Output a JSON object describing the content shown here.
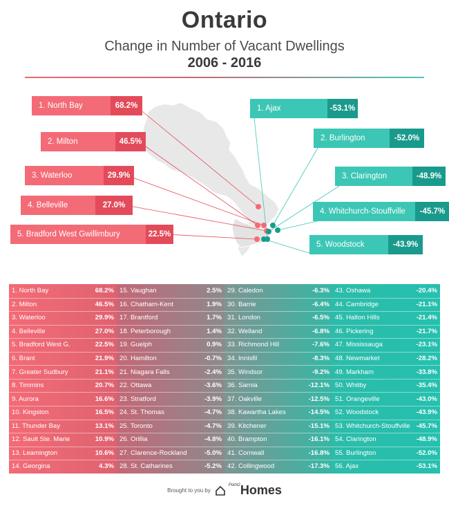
{
  "header": {
    "title": "Ontario",
    "subtitle": "Change in Number of Vacant Dwellings",
    "years": "2006 - 2016"
  },
  "colors": {
    "positive_light": "#f36b77",
    "positive_dark": "#e34b5a",
    "negative_light": "#3cc6b5",
    "negative_dark": "#1a9a8c",
    "map": "#e9e9e9"
  },
  "callouts_top": [
    {
      "name": "1. North Bay",
      "value": "68.2%"
    },
    {
      "name": "2. Milton",
      "value": "46.5%"
    },
    {
      "name": "3. Waterloo",
      "value": "29.9%"
    },
    {
      "name": "4. Belleville",
      "value": "27.0%"
    },
    {
      "name": "5. Bradford West Gwillimbury",
      "value": "22.5%"
    }
  ],
  "callouts_bottom": [
    {
      "name": "1. Ajax",
      "value": "-53.1%"
    },
    {
      "name": "2. Burlington",
      "value": "-52.0%"
    },
    {
      "name": "3. Clarington",
      "value": "-48.9%"
    },
    {
      "name": "4. Whitchurch-Stouffville",
      "value": "-45.7%"
    },
    {
      "name": "5. Woodstock",
      "value": "-43.9%"
    }
  ],
  "chart_data": {
    "type": "table",
    "title": "Ontario",
    "subtitle": "Change in Number of Vacant Dwellings 2006 - 2016",
    "rows": [
      {
        "label": "1. North Bay",
        "value": 68.2
      },
      {
        "label": "2. Milton",
        "value": 46.5
      },
      {
        "label": "3. Waterloo",
        "value": 29.9
      },
      {
        "label": "4. Belleville",
        "value": 27.0
      },
      {
        "label": "5. Bradford West G.",
        "value": 22.5
      },
      {
        "label": "6. Brant",
        "value": 21.9
      },
      {
        "label": "7. Greater Sudbury",
        "value": 21.1
      },
      {
        "label": "8. Timmins",
        "value": 20.7
      },
      {
        "label": "9. Aurora",
        "value": 16.6
      },
      {
        "label": "10. Kingston",
        "value": 16.5
      },
      {
        "label": "11. Thunder Bay",
        "value": 13.1
      },
      {
        "label": "12. Sault Ste. Marie",
        "value": 10.9
      },
      {
        "label": "13. Leamington",
        "value": 10.6
      },
      {
        "label": "14. Georgina",
        "value": 4.3
      },
      {
        "label": "15. Vaughan",
        "value": 2.5
      },
      {
        "label": "16. Chatham-Kent",
        "value": 1.9
      },
      {
        "label": "17. Brantford",
        "value": 1.7
      },
      {
        "label": "18. Peterborough",
        "value": 1.4
      },
      {
        "label": "19. Guelph",
        "value": 0.9
      },
      {
        "label": "20. Hamilton",
        "value": -0.7
      },
      {
        "label": "21. Niagara Falls",
        "value": -2.4
      },
      {
        "label": "22. Ottawa",
        "value": -3.6
      },
      {
        "label": "23. Stratford",
        "value": -3.9
      },
      {
        "label": "24. St. Thomas",
        "value": -4.7
      },
      {
        "label": "25. Toronto",
        "value": -4.7
      },
      {
        "label": "26. Orillia",
        "value": -4.8
      },
      {
        "label": "27. Clarence-Rockland",
        "value": -5.0
      },
      {
        "label": "28. St. Catharines",
        "value": -5.2
      },
      {
        "label": "29. Caledon",
        "value": -6.3
      },
      {
        "label": "30. Barrie",
        "value": -6.4
      },
      {
        "label": "31. London",
        "value": -6.5
      },
      {
        "label": "32. Welland",
        "value": -6.8
      },
      {
        "label": "33. Richmond Hill",
        "value": -7.6
      },
      {
        "label": "34. Innisfil",
        "value": -8.3
      },
      {
        "label": "35. Windsor",
        "value": -9.2
      },
      {
        "label": "36. Sarnia",
        "value": -12.1
      },
      {
        "label": "37. Oakville",
        "value": -12.5
      },
      {
        "label": "38. Kawartha Lakes",
        "value": -14.5
      },
      {
        "label": "39. Kitchener",
        "value": -15.1
      },
      {
        "label": "40. Brampton",
        "value": -16.1
      },
      {
        "label": "41. Cornwall",
        "value": -16.8
      },
      {
        "label": "42. Collingwood",
        "value": -17.3
      },
      {
        "label": "43. Oshawa",
        "value": -20.4
      },
      {
        "label": "44. Cambridge",
        "value": -21.1
      },
      {
        "label": "45. Halton Hills",
        "value": -21.4
      },
      {
        "label": "46. Pickering",
        "value": -21.7
      },
      {
        "label": "47. Mississauga",
        "value": -23.1
      },
      {
        "label": "48. Newmarket",
        "value": -28.2
      },
      {
        "label": "49. Markham",
        "value": -33.8
      },
      {
        "label": "50. Whitby",
        "value": -35.4
      },
      {
        "label": "51. Orangeville",
        "value": -43.0
      },
      {
        "label": "52. Woodstock",
        "value": -43.9
      },
      {
        "label": "53. Whitchurch-Stouffville",
        "value": -45.7
      },
      {
        "label": "54. Clarington",
        "value": -48.9
      },
      {
        "label": "55. Burlington",
        "value": -52.0
      },
      {
        "label": "56. Ajax",
        "value": -53.1
      }
    ]
  },
  "footer": {
    "brought_by": "Brought to you by",
    "logo_small": "Point2",
    "logo": "Homes"
  }
}
